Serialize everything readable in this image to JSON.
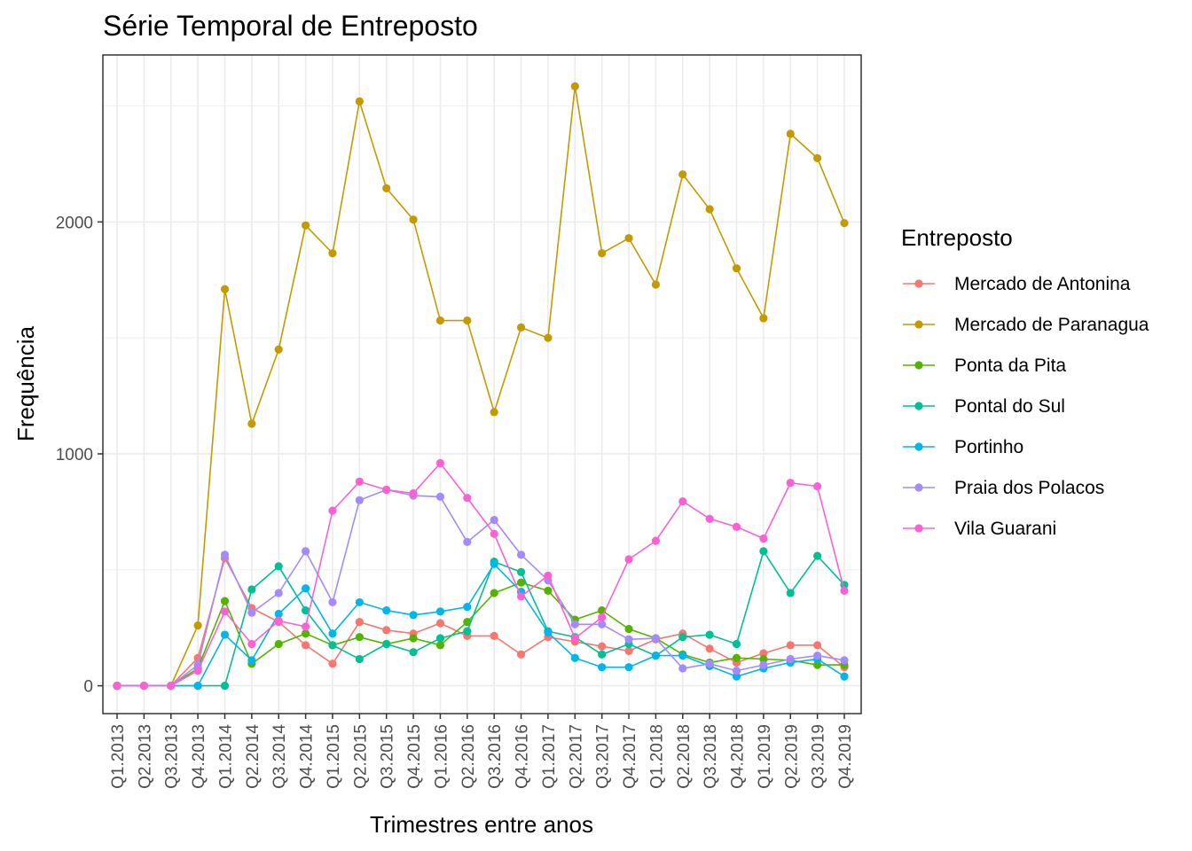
{
  "chart_data": {
    "type": "line",
    "title": "Série Temporal de Entreposto",
    "xlabel": "Trimestres entre anos",
    "ylabel": "Frequência",
    "ylim": [
      -120,
      2720
    ],
    "yticks": [
      0,
      1000,
      2000
    ],
    "grid": true,
    "legend_position": "right",
    "legend_title": "Entreposto",
    "categories": [
      "Q1.2013",
      "Q2.2013",
      "Q3.2013",
      "Q4.2013",
      "Q1.2014",
      "Q2.2014",
      "Q3.2014",
      "Q4.2014",
      "Q1.2015",
      "Q2.2015",
      "Q3.2015",
      "Q4.2015",
      "Q1.2016",
      "Q2.2016",
      "Q3.2016",
      "Q4.2016",
      "Q1.2017",
      "Q2.2017",
      "Q3.2017",
      "Q4.2017",
      "Q1.2018",
      "Q2.2018",
      "Q3.2018",
      "Q4.2018",
      "Q1.2019",
      "Q2.2019",
      "Q3.2019",
      "Q4.2019"
    ],
    "series": [
      {
        "name": "Mercado de Antonina",
        "color": "#F8766D",
        "values": [
          0,
          0,
          0,
          120,
          550,
          335,
          275,
          175,
          95,
          275,
          240,
          225,
          270,
          215,
          215,
          135,
          210,
          190,
          170,
          150,
          200,
          225,
          160,
          100,
          140,
          175,
          175,
          80
        ]
      },
      {
        "name": "Mercado de Paranagua",
        "color": "#C49A00",
        "values": [
          0,
          0,
          0,
          260,
          1710,
          1130,
          1450,
          1985,
          1865,
          2520,
          2145,
          2010,
          1575,
          1575,
          1180,
          1545,
          1500,
          2585,
          1865,
          1930,
          1730,
          2205,
          2055,
          1800,
          1585,
          2380,
          2275,
          1995
        ]
      },
      {
        "name": "Ponta da Pita",
        "color": "#53B400",
        "values": [
          0,
          0,
          0,
          75,
          365,
          95,
          180,
          225,
          175,
          210,
          180,
          205,
          175,
          275,
          400,
          445,
          410,
          285,
          325,
          245,
          205,
          135,
          100,
          120,
          115,
          110,
          90,
          90
        ]
      },
      {
        "name": "Pontal do Sul",
        "color": "#00C094",
        "values": [
          0,
          0,
          0,
          0,
          0,
          415,
          515,
          325,
          175,
          115,
          180,
          145,
          205,
          235,
          535,
          490,
          235,
          210,
          135,
          180,
          130,
          210,
          220,
          180,
          580,
          400,
          560,
          435
        ]
      },
      {
        "name": "Portinho",
        "color": "#00B6EB",
        "values": [
          0,
          0,
          0,
          0,
          220,
          110,
          310,
          420,
          225,
          360,
          325,
          305,
          320,
          340,
          525,
          405,
          230,
          120,
          80,
          80,
          130,
          130,
          85,
          40,
          75,
          100,
          115,
          40
        ]
      },
      {
        "name": "Praia dos Polacos",
        "color": "#A58AFF",
        "values": [
          0,
          0,
          0,
          90,
          565,
          315,
          400,
          580,
          360,
          800,
          845,
          820,
          815,
          620,
          715,
          565,
          455,
          265,
          265,
          200,
          205,
          75,
          95,
          65,
          90,
          115,
          130,
          110
        ]
      },
      {
        "name": "Vila Guarani",
        "color": "#FB61D7",
        "values": [
          0,
          0,
          0,
          65,
          320,
          180,
          280,
          255,
          755,
          880,
          845,
          830,
          960,
          810,
          655,
          385,
          475,
          205,
          295,
          545,
          625,
          795,
          720,
          685,
          635,
          875,
          860,
          410
        ]
      }
    ]
  }
}
